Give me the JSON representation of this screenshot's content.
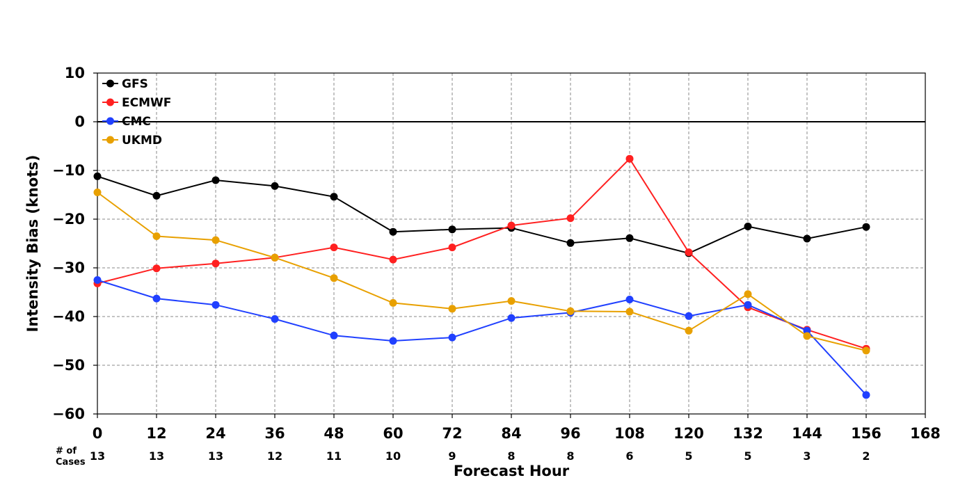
{
  "chart_data": {
    "type": "line",
    "title": "",
    "xlabel": "Forecast Hour",
    "ylabel": "Intensity Bias (knots)",
    "xlim": [
      0,
      168
    ],
    "ylim": [
      -60,
      10
    ],
    "x_ticks": [
      0,
      12,
      24,
      36,
      48,
      60,
      72,
      84,
      96,
      108,
      120,
      132,
      144,
      156,
      168
    ],
    "y_ticks": [
      10,
      0,
      -10,
      -20,
      -30,
      -40,
      -50,
      -60
    ],
    "y_tick_labels": [
      "10",
      "0",
      "−10",
      "−20",
      "−30",
      "−40",
      "−50",
      "−60"
    ],
    "grid": true,
    "zero_line": 0,
    "legend_position": "top-left",
    "cases_header": [
      "# of",
      "Cases"
    ],
    "cases": [
      {
        "x": 0,
        "n": "13"
      },
      {
        "x": 12,
        "n": "13"
      },
      {
        "x": 24,
        "n": "13"
      },
      {
        "x": 36,
        "n": "12"
      },
      {
        "x": 48,
        "n": "11"
      },
      {
        "x": 60,
        "n": "10"
      },
      {
        "x": 72,
        "n": "9"
      },
      {
        "x": 84,
        "n": "8"
      },
      {
        "x": 96,
        "n": "8"
      },
      {
        "x": 108,
        "n": "6"
      },
      {
        "x": 120,
        "n": "5"
      },
      {
        "x": 132,
        "n": "5"
      },
      {
        "x": 144,
        "n": "3"
      },
      {
        "x": 156,
        "n": "2"
      }
    ],
    "x": [
      0,
      12,
      24,
      36,
      48,
      60,
      72,
      84,
      96,
      108,
      120,
      132,
      144,
      156
    ],
    "series": [
      {
        "name": "GFS",
        "color": "#000000",
        "values": [
          -11.2,
          -15.2,
          -12.0,
          -13.2,
          -15.4,
          -22.6,
          -22.1,
          -21.8,
          -24.9,
          -23.9,
          -27.0,
          -21.5,
          -24.0,
          -21.6
        ]
      },
      {
        "name": "ECMWF",
        "color": "#ff2020",
        "values": [
          -33.2,
          -30.1,
          -29.1,
          -27.9,
          -25.8,
          -28.3,
          -25.8,
          -21.3,
          -19.8,
          -7.6,
          -26.8,
          -38.1,
          -42.7,
          -46.6
        ]
      },
      {
        "name": "CMC",
        "color": "#2040ff",
        "values": [
          -32.5,
          -36.3,
          -37.6,
          -40.5,
          -43.9,
          -45.0,
          -44.3,
          -40.3,
          -39.2,
          -36.5,
          -39.9,
          -37.6,
          -42.9,
          -56.1
        ]
      },
      {
        "name": "UKMD",
        "color": "#e8a000",
        "values": [
          -14.5,
          -23.5,
          -24.3,
          -27.9,
          -32.1,
          -37.2,
          -38.4,
          -36.8,
          -38.9,
          -39.0,
          -42.9,
          -35.4,
          -44.0,
          -47.0
        ]
      }
    ]
  }
}
